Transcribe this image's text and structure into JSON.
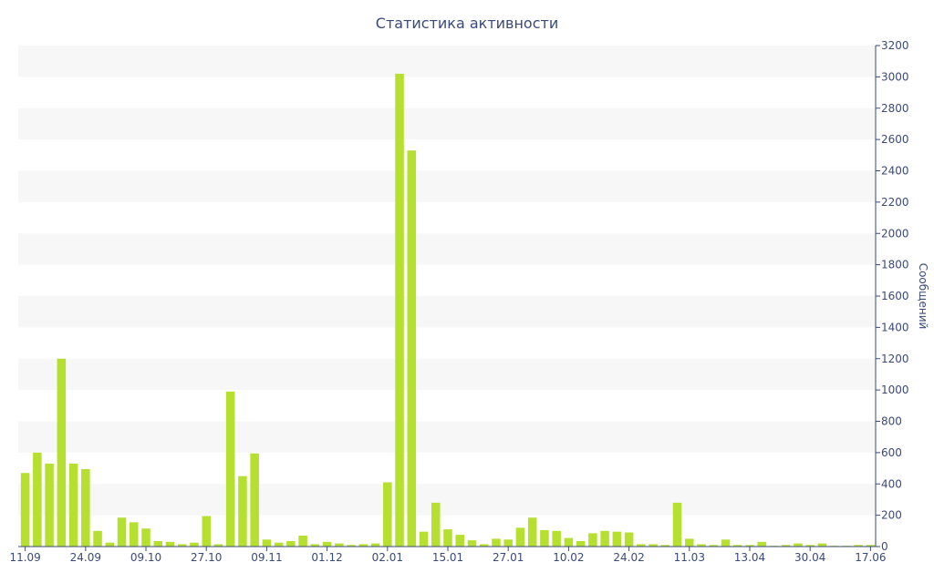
{
  "chart_data": {
    "type": "bar",
    "title": "Статистика активности",
    "xlabel": "",
    "ylabel": "Сообщений",
    "ylim": [
      0,
      3200
    ],
    "yticks": [
      0,
      200,
      400,
      600,
      800,
      1000,
      1200,
      1400,
      1600,
      1800,
      2000,
      2200,
      2400,
      2600,
      2800,
      3000,
      3200
    ],
    "y_axis_side": "right",
    "grid": "horizontal alternating bands",
    "bar_color": "#b5e02f",
    "band_color": "#f7f7f7",
    "text_color": "#3a4a7a",
    "x_tick_labels": [
      {
        "label": "11.09",
        "index": 0
      },
      {
        "label": "24.09",
        "index": 5
      },
      {
        "label": "09.10",
        "index": 10
      },
      {
        "label": "27.10",
        "index": 15
      },
      {
        "label": "09.11",
        "index": 20
      },
      {
        "label": "01.12",
        "index": 25
      },
      {
        "label": "02.01",
        "index": 30
      },
      {
        "label": "15.01",
        "index": 35
      },
      {
        "label": "27.01",
        "index": 40
      },
      {
        "label": "10.02",
        "index": 45
      },
      {
        "label": "24.02",
        "index": 50
      },
      {
        "label": "11.03",
        "index": 55
      },
      {
        "label": "13.04",
        "index": 60
      },
      {
        "label": "30.04",
        "index": 65
      },
      {
        "label": "17.06",
        "index": 70
      }
    ],
    "values": [
      470,
      600,
      530,
      1200,
      530,
      495,
      100,
      25,
      185,
      155,
      115,
      35,
      30,
      15,
      25,
      195,
      15,
      990,
      450,
      595,
      45,
      25,
      35,
      70,
      15,
      30,
      20,
      10,
      15,
      20,
      410,
      3020,
      2530,
      95,
      280,
      110,
      75,
      40,
      15,
      50,
      45,
      120,
      185,
      105,
      100,
      55,
      35,
      85,
      100,
      95,
      90,
      15,
      15,
      10,
      280,
      50,
      15,
      10,
      45,
      10,
      10,
      30,
      5,
      10,
      20,
      10,
      20,
      5,
      5,
      10,
      10
    ]
  }
}
